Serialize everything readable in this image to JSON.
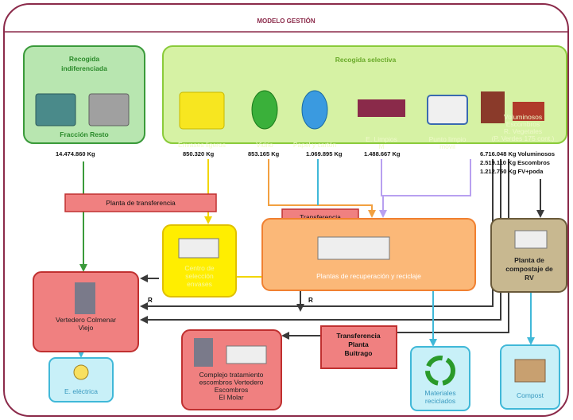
{
  "title": "MODELO GESTIÓN",
  "indiferenciada": {
    "title": [
      "Recogida",
      "indiferenciada"
    ],
    "label": "Fracción Resto",
    "amount": "14.474.860 Kg"
  },
  "selectiva": {
    "title": "Recogida selectiva",
    "items": [
      {
        "label": [
          "Envases ligeros"
        ],
        "amount": "850.320 Kg"
      },
      {
        "label": [
          "Vidrio"
        ],
        "amount": "853.165 Kg"
      },
      {
        "label": [
          "Papel y cartón"
        ],
        "amount": "1.069.895 Kg"
      },
      {
        "label": [
          "E. Limpios",
          "M"
        ],
        "amount": "1.488.667 Kg"
      },
      {
        "label": [
          "Punto limpio",
          "móvil"
        ]
      },
      {
        "label": [
          "Voluminosos",
          "Escombros",
          "R. Vegetales",
          "(P. Verdes 175 cont.)"
        ],
        "amounts": [
          "6.716.048 Kg Voluminosos",
          "2.519.110 Kg Escombros",
          "1.212.750 Kg FV+poda"
        ]
      }
    ]
  },
  "nodes": {
    "planta_transferencia": "Planta de transferencia",
    "transferencia": "Transferencia",
    "centro_envases": [
      "Centro de",
      "selección",
      "envases"
    ],
    "plantas_recuperacion": "Plantas de recuperación y reciclaje",
    "compostaje": [
      "Planta de",
      "compostaje de",
      "RV"
    ],
    "vertedero": [
      "Vertedero Colmenar",
      "Viejo"
    ],
    "r_labels": [
      "R",
      "R"
    ],
    "electrica": "E. eléctrica",
    "complejo": [
      "Complejo tratamiento",
      "escombros Vertedero",
      "Escombros",
      "El Molar"
    ],
    "buitrago": [
      "Transferencia",
      "Planta",
      "Buitrago"
    ],
    "materiales": [
      "Materiales",
      "reciclados"
    ],
    "compost": "Compost"
  }
}
